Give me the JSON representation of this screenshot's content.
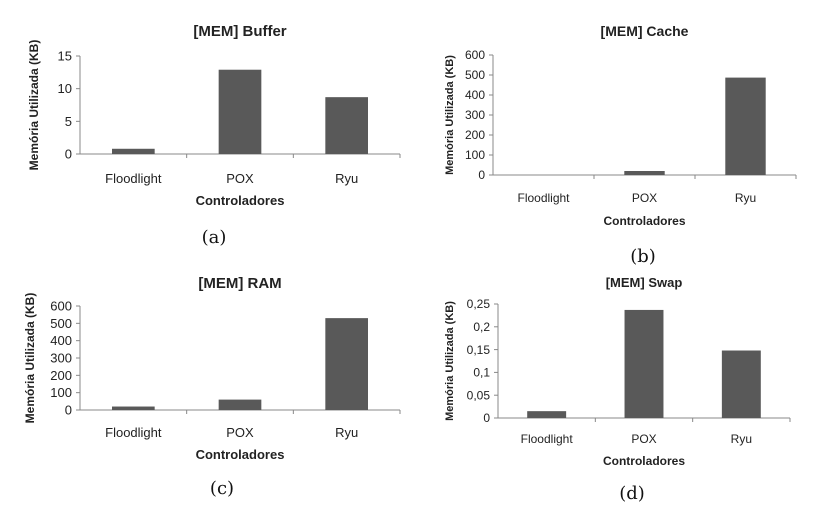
{
  "chart_data": [
    {
      "type": "bar",
      "title": "[MEM] Buffer",
      "xlabel": "Controladores",
      "ylabel": "Memória Utilizada (KB)",
      "categories": [
        "Floodlight",
        "POX",
        "Ryu"
      ],
      "values": [
        0.8,
        12.9,
        8.7
      ],
      "ylim": [
        0,
        15
      ],
      "yticks": [
        "0",
        "5",
        "10",
        "15"
      ],
      "ytick_values": [
        0,
        5,
        10,
        15
      ],
      "panel_label": "(a)",
      "grid": false,
      "legend": "none"
    },
    {
      "type": "bar",
      "title": "[MEM] Cache",
      "xlabel": "Controladores",
      "ylabel": "Memória Utilizada (KB)",
      "categories": [
        "Floodlight",
        "POX",
        "Ryu"
      ],
      "values": [
        0,
        20,
        487
      ],
      "ylim": [
        0,
        600
      ],
      "yticks": [
        "0",
        "100",
        "200",
        "300",
        "400",
        "500",
        "600"
      ],
      "ytick_values": [
        0,
        100,
        200,
        300,
        400,
        500,
        600
      ],
      "panel_label": "(b)",
      "grid": false,
      "legend": "none"
    },
    {
      "type": "bar",
      "title": "[MEM] RAM",
      "xlabel": "Controladores",
      "ylabel": "Memória Utilizada (KB)",
      "categories": [
        "Floodlight",
        "POX",
        "Ryu"
      ],
      "values": [
        20,
        60,
        530
      ],
      "ylim": [
        0,
        600
      ],
      "yticks": [
        "0",
        "100",
        "200",
        "300",
        "400",
        "500",
        "600"
      ],
      "ytick_values": [
        0,
        100,
        200,
        300,
        400,
        500,
        600
      ],
      "panel_label": "(c)",
      "grid": false,
      "legend": "none"
    },
    {
      "type": "bar",
      "title": "[MEM] Swap",
      "xlabel": "Controladores",
      "ylabel": "Memória Utilizada (KB)",
      "categories": [
        "Floodlight",
        "POX",
        "Ryu"
      ],
      "values": [
        0.015,
        0.237,
        0.148
      ],
      "ylim": [
        0,
        0.25
      ],
      "yticks": [
        "0",
        "0,05",
        "0,1",
        "0,15",
        "0,2",
        "0,25"
      ],
      "ytick_values": [
        0,
        0.05,
        0.1,
        0.15,
        0.2,
        0.25
      ],
      "panel_label": "(d)",
      "grid": false,
      "legend": "none"
    }
  ],
  "colors": {
    "bar": "#595959",
    "axis": "#888888"
  }
}
